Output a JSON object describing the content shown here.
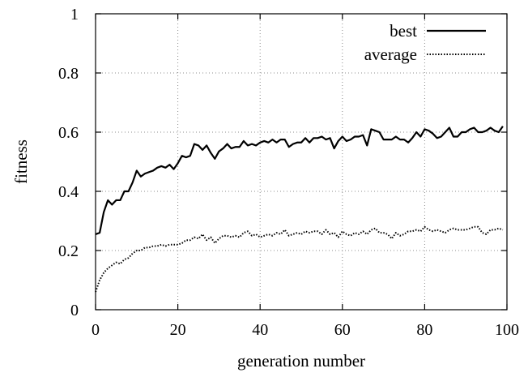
{
  "chart_data": {
    "type": "line",
    "xlabel": "generation number",
    "ylabel": "fitness",
    "xlim": [
      0,
      100
    ],
    "ylim": [
      0,
      1
    ],
    "xticks": [
      0,
      20,
      40,
      60,
      80,
      100
    ],
    "yticks": [
      0,
      0.2,
      0.4,
      0.6,
      0.8,
      1
    ],
    "ytick_labels": [
      "0",
      "0.2",
      "0.4",
      "0.6",
      "0.8",
      "1"
    ],
    "grid": true,
    "legend_position": "top-right",
    "series": [
      {
        "name": "best",
        "style": "solid",
        "color": "#000000",
        "x": [
          0,
          1,
          2,
          3,
          4,
          5,
          6,
          7,
          8,
          9,
          10,
          11,
          12,
          13,
          14,
          15,
          16,
          17,
          18,
          19,
          20,
          21,
          22,
          23,
          24,
          25,
          26,
          27,
          28,
          29,
          30,
          31,
          32,
          33,
          34,
          35,
          36,
          37,
          38,
          39,
          40,
          41,
          42,
          43,
          44,
          45,
          46,
          47,
          48,
          49,
          50,
          51,
          52,
          53,
          54,
          55,
          56,
          57,
          58,
          59,
          60,
          61,
          62,
          63,
          64,
          65,
          66,
          67,
          68,
          69,
          70,
          71,
          72,
          73,
          74,
          75,
          76,
          77,
          78,
          79,
          80,
          81,
          82,
          83,
          84,
          85,
          86,
          87,
          88,
          89,
          90,
          91,
          92,
          93,
          94,
          95,
          96,
          97,
          98,
          99
        ],
        "values": [
          0.255,
          0.26,
          0.33,
          0.37,
          0.355,
          0.37,
          0.37,
          0.4,
          0.4,
          0.43,
          0.47,
          0.45,
          0.46,
          0.465,
          0.47,
          0.48,
          0.485,
          0.48,
          0.49,
          0.475,
          0.495,
          0.52,
          0.515,
          0.52,
          0.56,
          0.555,
          0.54,
          0.555,
          0.53,
          0.51,
          0.535,
          0.545,
          0.56,
          0.545,
          0.55,
          0.55,
          0.57,
          0.555,
          0.56,
          0.555,
          0.565,
          0.57,
          0.565,
          0.575,
          0.565,
          0.575,
          0.575,
          0.55,
          0.56,
          0.565,
          0.565,
          0.58,
          0.565,
          0.58,
          0.58,
          0.585,
          0.575,
          0.58,
          0.545,
          0.57,
          0.585,
          0.57,
          0.575,
          0.585,
          0.585,
          0.59,
          0.555,
          0.61,
          0.605,
          0.6,
          0.575,
          0.575,
          0.575,
          0.585,
          0.575,
          0.575,
          0.565,
          0.58,
          0.6,
          0.585,
          0.61,
          0.605,
          0.595,
          0.58,
          0.585,
          0.6,
          0.615,
          0.585,
          0.585,
          0.6,
          0.6,
          0.61,
          0.615,
          0.6,
          0.6,
          0.605,
          0.615,
          0.605,
          0.6,
          0.62
        ]
      },
      {
        "name": "average",
        "style": "dotted",
        "color": "#000000",
        "x": [
          0,
          1,
          2,
          3,
          4,
          5,
          6,
          7,
          8,
          9,
          10,
          11,
          12,
          13,
          14,
          15,
          16,
          17,
          18,
          19,
          20,
          21,
          22,
          23,
          24,
          25,
          26,
          27,
          28,
          29,
          30,
          31,
          32,
          33,
          34,
          35,
          36,
          37,
          38,
          39,
          40,
          41,
          42,
          43,
          44,
          45,
          46,
          47,
          48,
          49,
          50,
          51,
          52,
          53,
          54,
          55,
          56,
          57,
          58,
          59,
          60,
          61,
          62,
          63,
          64,
          65,
          66,
          67,
          68,
          69,
          70,
          71,
          72,
          73,
          74,
          75,
          76,
          77,
          78,
          79,
          80,
          81,
          82,
          83,
          84,
          85,
          86,
          87,
          88,
          89,
          90,
          91,
          92,
          93,
          94,
          95,
          96,
          97,
          98,
          99
        ],
        "values": [
          0.06,
          0.1,
          0.125,
          0.14,
          0.15,
          0.16,
          0.155,
          0.17,
          0.175,
          0.19,
          0.2,
          0.2,
          0.21,
          0.21,
          0.215,
          0.215,
          0.22,
          0.215,
          0.22,
          0.22,
          0.22,
          0.225,
          0.235,
          0.235,
          0.245,
          0.24,
          0.255,
          0.235,
          0.245,
          0.225,
          0.24,
          0.25,
          0.25,
          0.245,
          0.25,
          0.245,
          0.26,
          0.265,
          0.25,
          0.255,
          0.245,
          0.25,
          0.255,
          0.25,
          0.26,
          0.255,
          0.27,
          0.25,
          0.255,
          0.26,
          0.255,
          0.265,
          0.26,
          0.265,
          0.265,
          0.255,
          0.27,
          0.255,
          0.26,
          0.245,
          0.265,
          0.255,
          0.25,
          0.26,
          0.255,
          0.265,
          0.255,
          0.27,
          0.275,
          0.26,
          0.26,
          0.255,
          0.24,
          0.26,
          0.25,
          0.255,
          0.265,
          0.265,
          0.27,
          0.265,
          0.28,
          0.27,
          0.265,
          0.27,
          0.265,
          0.26,
          0.27,
          0.275,
          0.27,
          0.27,
          0.27,
          0.275,
          0.28,
          0.28,
          0.26,
          0.255,
          0.27,
          0.27,
          0.275,
          0.27
        ]
      }
    ]
  }
}
